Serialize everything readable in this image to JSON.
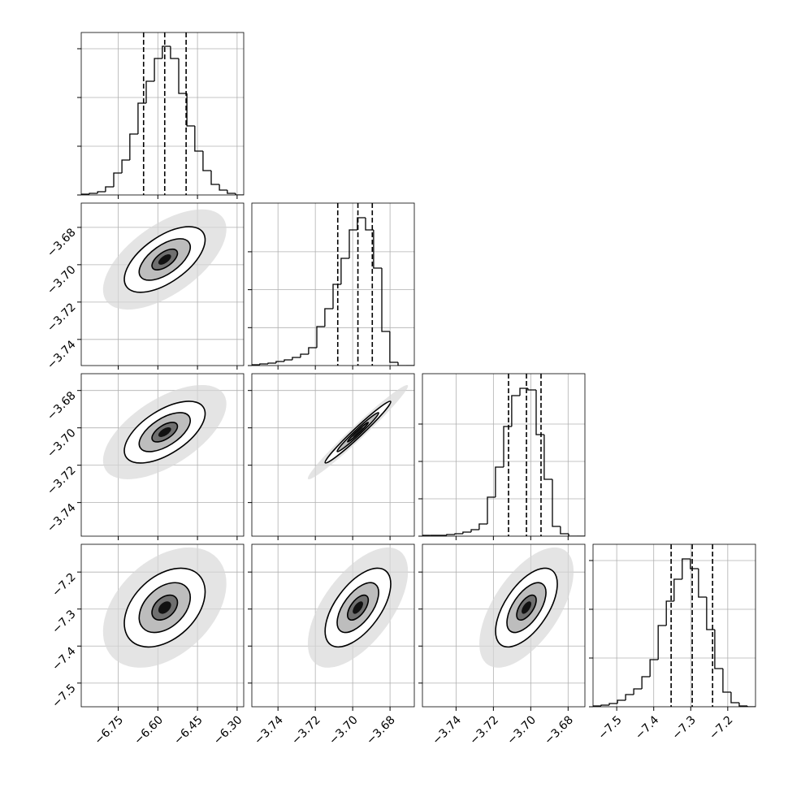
{
  "chart_data": {
    "type": "corner",
    "grid": true,
    "parameters": [
      {
        "lim": [
          -6.89,
          -6.275
        ],
        "ticks": [
          {
            "value": -6.75,
            "label": "−6.75"
          },
          {
            "value": -6.6,
            "label": "−6.60"
          },
          {
            "value": -6.45,
            "label": "−6.45"
          },
          {
            "value": -6.3,
            "label": "−6.30"
          }
        ],
        "quantiles": [
          -6.654,
          -6.574,
          -6.493
        ]
      },
      {
        "lim": [
          -3.754,
          -3.667
        ],
        "ticks": [
          {
            "value": -3.74,
            "label": "−3.74"
          },
          {
            "value": -3.72,
            "label": "−3.72"
          },
          {
            "value": -3.7,
            "label": "−3.70"
          },
          {
            "value": -3.68,
            "label": "−3.68"
          }
        ],
        "quantiles": [
          -3.708,
          -3.6972,
          -3.6895
        ]
      },
      {
        "lim": [
          -3.758,
          -3.671
        ],
        "ticks": [
          {
            "value": -3.74,
            "label": "−3.74"
          },
          {
            "value": -3.72,
            "label": "−3.72"
          },
          {
            "value": -3.7,
            "label": "−3.70"
          },
          {
            "value": -3.68,
            "label": "−3.68"
          }
        ],
        "quantiles": [
          -3.7119,
          -3.7023,
          -3.6945
        ]
      },
      {
        "lim": [
          -7.564,
          -7.125
        ],
        "ticks": [
          {
            "value": -7.5,
            "label": "−7.5"
          },
          {
            "value": -7.4,
            "label": "−7.4"
          },
          {
            "value": -7.3,
            "label": "−7.3"
          },
          {
            "value": -7.2,
            "label": "−7.2"
          }
        ],
        "quantiles": [
          -7.353,
          -7.296,
          -7.241
        ]
      }
    ],
    "histograms": [
      {
        "bins": [
          -6.89,
          -6.859,
          -6.828,
          -6.798,
          -6.767,
          -6.736,
          -6.706,
          -6.675,
          -6.644,
          -6.613,
          -6.583,
          -6.552,
          -6.521,
          -6.49,
          -6.46,
          -6.429,
          -6.398,
          -6.367,
          -6.337,
          -6.306,
          -6.275
        ],
        "counts": [
          17,
          33,
          67,
          167,
          450,
          717,
          1250,
          1883,
          2333,
          2800,
          3050,
          2800,
          2083,
          1417,
          900,
          500,
          217,
          100,
          33,
          0
        ],
        "ylim": [
          0,
          3333
        ],
        "yticks": [
          0,
          1000,
          2000,
          3000
        ]
      },
      {
        "bins": [
          -3.754,
          -3.7497,
          -3.7453,
          -3.741,
          -3.7366,
          -3.7323,
          -3.7279,
          -3.7236,
          -3.7192,
          -3.7149,
          -3.7105,
          -3.7062,
          -3.7018,
          -3.6975,
          -3.6931,
          -3.6888,
          -3.6844,
          -3.6801,
          -3.6757,
          -3.6714,
          -3.667
        ],
        "counts": [
          21,
          43,
          64,
          107,
          150,
          214,
          300,
          471,
          1028,
          1499,
          2141,
          2827,
          3576,
          3897,
          3576,
          2570,
          900,
          86,
          0,
          0
        ],
        "ylim": [
          0,
          4283
        ],
        "yticks": [
          0,
          1000,
          2000,
          3000
        ]
      },
      {
        "bins": [
          -3.758,
          -3.7537,
          -3.7493,
          -3.745,
          -3.7406,
          -3.7363,
          -3.7319,
          -3.7276,
          -3.7232,
          -3.7189,
          -3.7145,
          -3.7102,
          -3.7058,
          -3.7015,
          -3.6971,
          -3.6928,
          -3.6884,
          -3.6841,
          -3.6797,
          -3.6754,
          -3.671
        ],
        "counts": [
          22,
          22,
          22,
          43,
          65,
          109,
          174,
          326,
          1043,
          1848,
          2935,
          3761,
          3957,
          3913,
          2717,
          1522,
          261,
          65,
          0,
          0
        ],
        "ylim": [
          0,
          4348
        ],
        "yticks": [
          0,
          1000,
          2000,
          3000
        ]
      },
      {
        "bins": [
          -7.564,
          -7.542,
          -7.52,
          -7.498,
          -7.476,
          -7.454,
          -7.432,
          -7.41,
          -7.388,
          -7.366,
          -7.345,
          -7.323,
          -7.301,
          -7.279,
          -7.257,
          -7.235,
          -7.213,
          -7.191,
          -7.169,
          -7.147,
          -7.125
        ],
        "counts": [
          17,
          33,
          67,
          133,
          250,
          367,
          617,
          967,
          1667,
          2167,
          2617,
          3033,
          2833,
          2250,
          1583,
          783,
          300,
          83,
          17,
          0
        ],
        "ylim": [
          0,
          3333
        ],
        "yticks": [
          0,
          1000,
          2000,
          3000
        ]
      }
    ],
    "correlations": [
      0.6,
      0.6,
      0.98,
      0.4,
      0.6,
      0.6
    ],
    "contour_levels": [
      0.6,
      1.2,
      1.9
    ]
  }
}
